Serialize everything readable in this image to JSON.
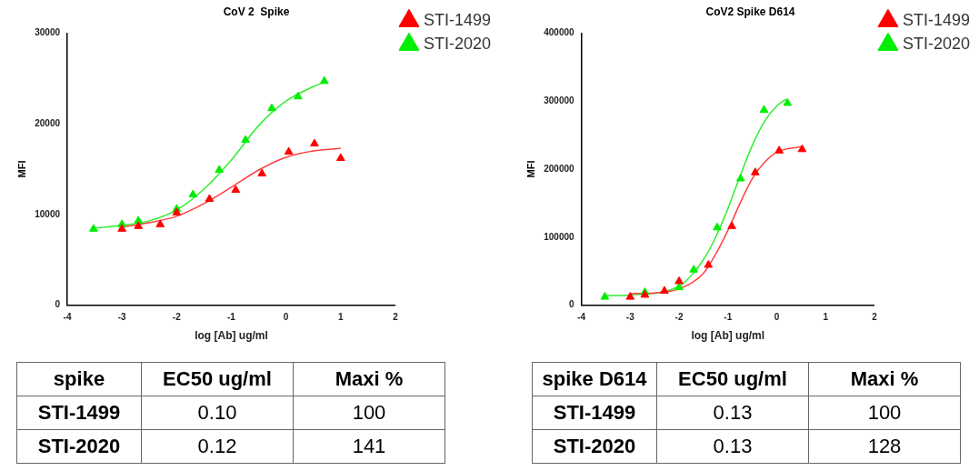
{
  "chart_data": [
    {
      "type": "scatter",
      "title": "CoV 2  Spike",
      "xlabel": "log [Ab] ug/ml",
      "ylabel": "MFI",
      "xlim": [
        -4,
        2
      ],
      "xticks": [
        -4,
        -3,
        -2,
        -1,
        0,
        1,
        2
      ],
      "ylim": [
        0,
        30000
      ],
      "yticks": [
        0,
        10000,
        20000,
        30000
      ],
      "grid": false,
      "legend": "right",
      "marker": "triangle",
      "series": [
        {
          "name": "STI-1499",
          "color": "#ff0000",
          "x": [
            -3,
            -2.7,
            -2.3,
            -2,
            -1.4,
            -0.92,
            -0.44,
            0.05,
            0.52,
            1.0
          ],
          "values": [
            8400,
            8700,
            8900,
            10200,
            11700,
            12700,
            14500,
            16900,
            17800,
            16200
          ]
        },
        {
          "name": "STI-2020",
          "color": "#00ee00",
          "x": [
            -3.52,
            -3,
            -2.7,
            -2,
            -1.7,
            -1.22,
            -0.74,
            -0.26,
            0.22,
            0.7
          ],
          "values": [
            8400,
            8900,
            9300,
            10600,
            12200,
            14900,
            18200,
            21700,
            23000,
            24700
          ]
        },
        {
          "type": "line",
          "marker": "none",
          "color": "#ff4040",
          "x": [
            -3,
            -2.5,
            -2,
            -1.5,
            -1,
            -0.5,
            0,
            0.5,
            1
          ],
          "values": [
            8600,
            9100,
            9800,
            11200,
            13000,
            14900,
            16300,
            17000,
            17300
          ]
        },
        {
          "type": "line",
          "marker": "none",
          "color": "#30ee30",
          "x": [
            -3.5,
            -3,
            -2.5,
            -2,
            -1.5,
            -1,
            -0.5,
            0,
            0.5,
            0.7
          ],
          "values": [
            8500,
            8800,
            9300,
            10500,
            12800,
            16000,
            19800,
            22500,
            24100,
            24600
          ]
        }
      ]
    },
    {
      "type": "scatter",
      "title": "CoV2 Spike D614",
      "xlabel": "log [Ab] ug/ml",
      "ylabel": "MFI",
      "xlim": [
        -4,
        2
      ],
      "xticks": [
        -4,
        -3,
        -2,
        -1,
        0,
        1,
        2
      ],
      "ylim": [
        0,
        400000
      ],
      "yticks": [
        0,
        100000,
        200000,
        300000,
        400000
      ],
      "grid": false,
      "legend": "right",
      "marker": "triangle",
      "series": [
        {
          "name": "STI-1499",
          "color": "#ff0000",
          "x": [
            -3,
            -2.7,
            -2.3,
            -2,
            -1.4,
            -0.92,
            -0.44,
            0.05,
            0.52
          ],
          "values": [
            12000,
            15000,
            21000,
            35000,
            59000,
            116000,
            195000,
            227000,
            229000
          ]
        },
        {
          "name": "STI-2020",
          "color": "#00ee00",
          "x": [
            -3.52,
            -3,
            -2.7,
            -2,
            -1.7,
            -1.22,
            -0.74,
            -0.26,
            0.22
          ],
          "values": [
            12000,
            null,
            19000,
            26000,
            52000,
            114000,
            186000,
            287000,
            297000
          ]
        },
        {
          "type": "line",
          "marker": "none",
          "color": "#ff4040",
          "x": [
            -3,
            -2.5,
            -2,
            -1.5,
            -1.25,
            -1,
            -0.75,
            -0.5,
            -0.25,
            0,
            0.5
          ],
          "values": [
            17000,
            18000,
            24000,
            47000,
            75000,
            110000,
            150000,
            186000,
            210000,
            225000,
            233000
          ]
        },
        {
          "type": "line",
          "marker": "none",
          "color": "#30ee30",
          "x": [
            -3.5,
            -3,
            -2,
            -1.5,
            -1.25,
            -1,
            -0.75,
            -0.5,
            -0.25,
            0,
            0.2
          ],
          "values": [
            14000,
            15000,
            28000,
            67000,
            100000,
            142000,
            190000,
            235000,
            270000,
            293000,
            303000
          ]
        }
      ]
    },
    {
      "type": "other",
      "annotations": [
        "spike",
        "EC50 ug/ml",
        "Maxi %",
        "STI-1499",
        "0.10",
        "100",
        "STI-2020",
        "0.12",
        "141"
      ]
    },
    {
      "type": "other",
      "annotations": [
        "spike D614",
        "EC50 ug/ml",
        "Maxi %",
        "STI-1499",
        "0.13",
        "100",
        "STI-2020",
        "0.13",
        "128"
      ]
    }
  ]
}
